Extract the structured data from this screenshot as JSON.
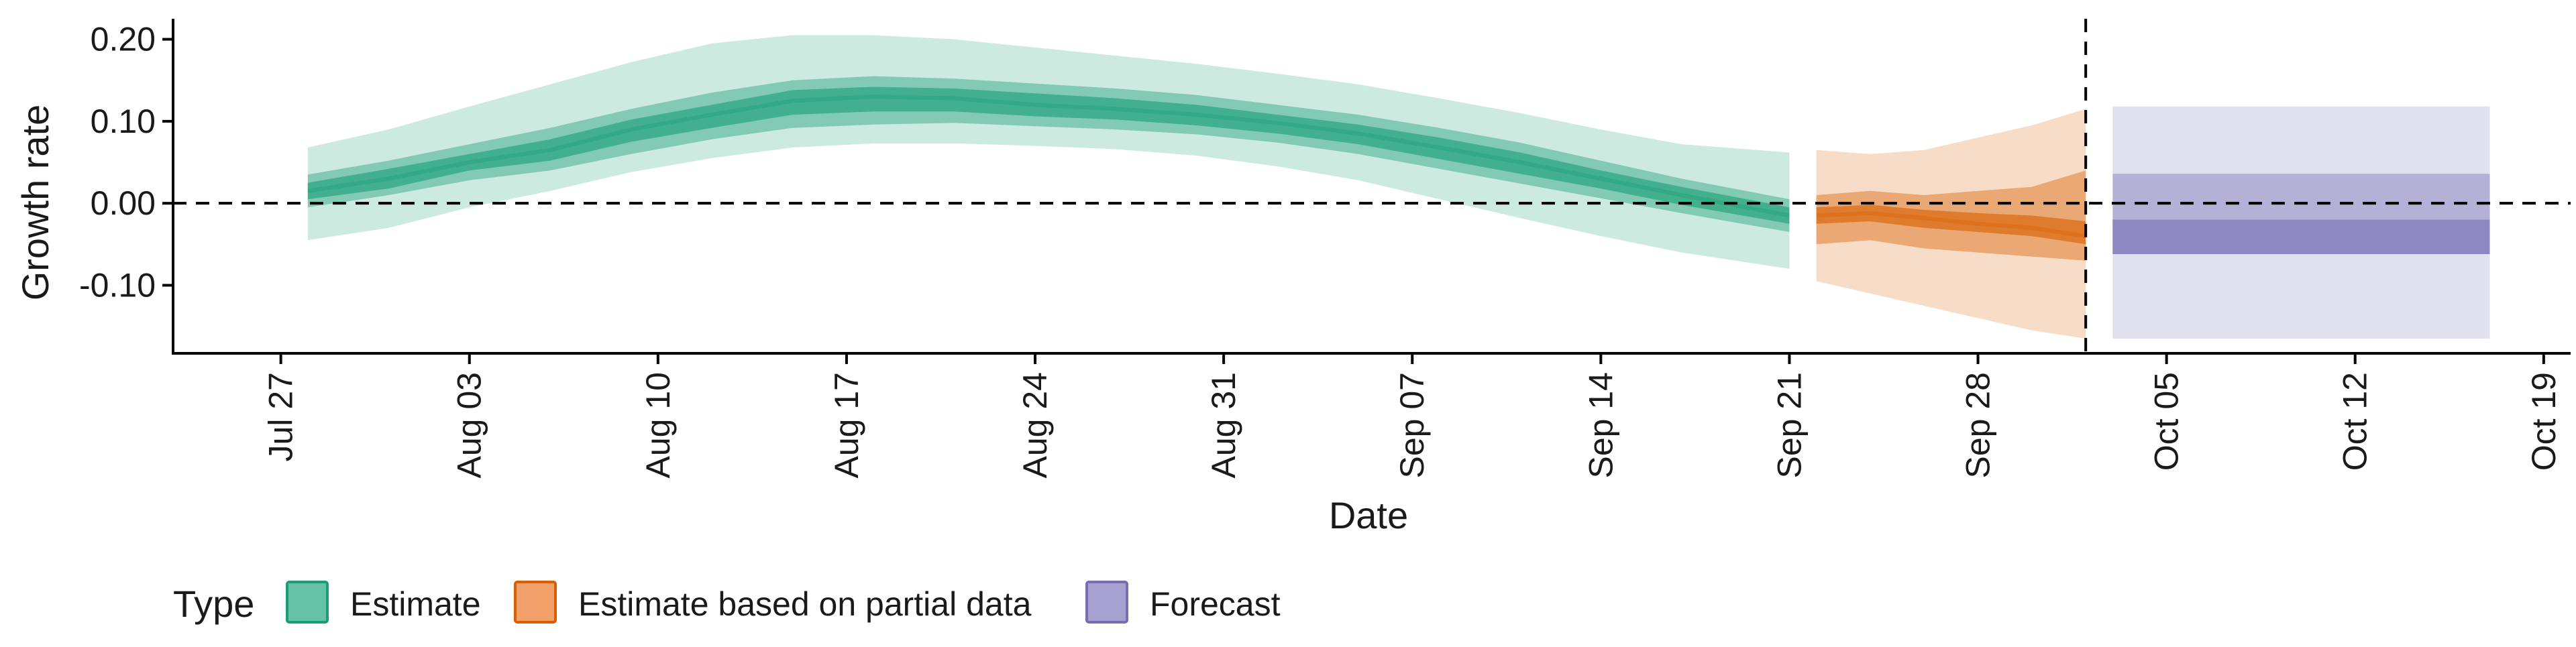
{
  "chart_data": {
    "type": "area",
    "title": "",
    "xlabel": "Date",
    "ylabel": "Growth rate",
    "x_tick_labels": [
      "Jul 27",
      "Aug 03",
      "Aug 10",
      "Aug 17",
      "Aug 24",
      "Aug 31",
      "Sep 07",
      "Sep 14",
      "Sep 21",
      "Sep 28",
      "Oct 05",
      "Oct 12",
      "Oct 19"
    ],
    "x_tick_dates": [
      "2020-07-27",
      "2020-08-03",
      "2020-08-10",
      "2020-08-17",
      "2020-08-24",
      "2020-08-31",
      "2020-09-07",
      "2020-09-14",
      "2020-09-21",
      "2020-09-28",
      "2020-10-05",
      "2020-10-12",
      "2020-10-19"
    ],
    "y_tick_labels": [
      "-0.10",
      "0.00",
      "0.10",
      "0.20"
    ],
    "y_tick_values": [
      -0.1,
      0.0,
      0.1,
      0.2
    ],
    "xlim": [
      "2020-07-23",
      "2020-10-20"
    ],
    "ylim": [
      -0.183,
      0.225
    ],
    "reference_lines": {
      "horizontal_y": 0.0,
      "vertical_date": "2020-10-02"
    },
    "grid": false,
    "legend": {
      "title": "Type",
      "placement": "bottom",
      "entries": [
        {
          "label": "Estimate",
          "color": "#66c2a5",
          "border": "#1b9e77"
        },
        {
          "label": "Estimate based on partial data",
          "color": "#f2a16b",
          "border": "#d95f02"
        },
        {
          "label": "Forecast",
          "color": "#a6a1cf",
          "border": "#7570b3"
        }
      ]
    },
    "series": [
      {
        "name": "Estimate",
        "color": "#1b9e77",
        "x": [
          "2020-07-28",
          "2020-07-31",
          "2020-08-03",
          "2020-08-06",
          "2020-08-09",
          "2020-08-12",
          "2020-08-15",
          "2020-08-18",
          "2020-08-21",
          "2020-08-24",
          "2020-08-27",
          "2020-08-30",
          "2020-09-02",
          "2020-09-05",
          "2020-09-08",
          "2020-09-11",
          "2020-09-14",
          "2020-09-17",
          "2020-09-21"
        ],
        "median": [
          0.015,
          0.03,
          0.05,
          0.065,
          0.09,
          0.108,
          0.125,
          0.13,
          0.128,
          0.12,
          0.115,
          0.108,
          0.098,
          0.085,
          0.068,
          0.05,
          0.03,
          0.01,
          -0.015
        ],
        "lower_20": [
          0.005,
          0.018,
          0.04,
          0.052,
          0.075,
          0.092,
          0.108,
          0.112,
          0.112,
          0.106,
          0.102,
          0.095,
          0.085,
          0.072,
          0.054,
          0.036,
          0.018,
          -0.002,
          -0.025
        ],
        "upper_20": [
          0.025,
          0.042,
          0.06,
          0.078,
          0.102,
          0.12,
          0.138,
          0.142,
          0.14,
          0.134,
          0.128,
          0.12,
          0.108,
          0.096,
          0.08,
          0.062,
          0.04,
          0.02,
          -0.005
        ],
        "lower_50": [
          -0.005,
          0.01,
          0.028,
          0.04,
          0.06,
          0.078,
          0.092,
          0.096,
          0.098,
          0.094,
          0.09,
          0.084,
          0.074,
          0.06,
          0.042,
          0.024,
          0.006,
          -0.012,
          -0.035
        ],
        "upper_50": [
          0.035,
          0.052,
          0.072,
          0.092,
          0.115,
          0.135,
          0.15,
          0.155,
          0.152,
          0.146,
          0.14,
          0.132,
          0.12,
          0.108,
          0.092,
          0.074,
          0.052,
          0.03,
          0.005
        ],
        "lower_90": [
          -0.045,
          -0.03,
          -0.005,
          0.015,
          0.038,
          0.055,
          0.068,
          0.073,
          0.073,
          0.07,
          0.066,
          0.058,
          0.045,
          0.028,
          0.005,
          -0.018,
          -0.04,
          -0.06,
          -0.08
        ],
        "upper_90": [
          0.068,
          0.09,
          0.118,
          0.145,
          0.172,
          0.195,
          0.205,
          0.205,
          0.2,
          0.19,
          0.18,
          0.17,
          0.158,
          0.145,
          0.128,
          0.11,
          0.09,
          0.072,
          0.062
        ]
      },
      {
        "name": "Estimate based on partial data",
        "color": "#d95f02",
        "x": [
          "2020-09-22",
          "2020-09-24",
          "2020-09-26",
          "2020-09-28",
          "2020-09-30",
          "2020-10-02"
        ],
        "median": [
          -0.015,
          -0.012,
          -0.018,
          -0.025,
          -0.03,
          -0.04
        ],
        "lower_20": [
          -0.025,
          -0.022,
          -0.03,
          -0.035,
          -0.04,
          -0.05
        ],
        "upper_20": [
          -0.005,
          -0.002,
          -0.008,
          -0.012,
          -0.015,
          -0.022
        ],
        "lower_50": [
          -0.05,
          -0.045,
          -0.055,
          -0.06,
          -0.065,
          -0.07
        ],
        "upper_50": [
          0.01,
          0.015,
          0.01,
          0.015,
          0.02,
          0.04
        ],
        "lower_90": [
          -0.095,
          -0.11,
          -0.125,
          -0.14,
          -0.155,
          -0.165
        ],
        "upper_90": [
          0.065,
          0.06,
          0.065,
          0.08,
          0.095,
          0.115
        ]
      },
      {
        "name": "Forecast",
        "color": "#7570b3",
        "x": [
          "2020-10-03",
          "2020-10-17"
        ],
        "median": [
          -0.04,
          -0.04
        ],
        "lower_20": [
          -0.062,
          -0.062
        ],
        "upper_20": [
          -0.02,
          -0.02
        ],
        "lower_50": [
          -0.062,
          -0.062
        ],
        "upper_50": [
          0.036,
          0.036
        ],
        "lower_90": [
          -0.165,
          -0.165
        ],
        "upper_90": [
          0.118,
          0.118
        ]
      }
    ]
  }
}
